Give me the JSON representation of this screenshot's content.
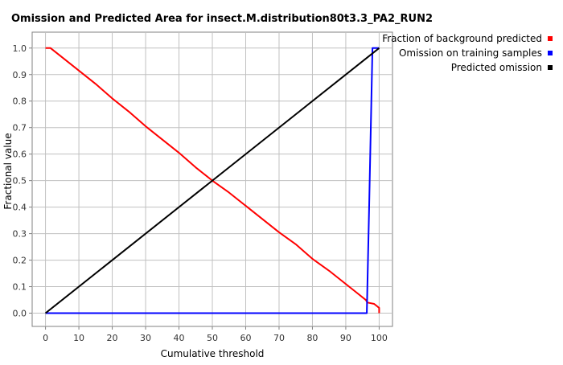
{
  "chart_data": {
    "type": "line",
    "title": "Omission and Predicted Area for insect.M.distribution80t3.3_PA2_RUN2",
    "xlabel": "Cumulative threshold",
    "ylabel": "Fractional value",
    "xlim": [
      -4,
      104
    ],
    "ylim": [
      -0.05,
      1.06
    ],
    "xticks": [
      0,
      10,
      20,
      30,
      40,
      50,
      60,
      70,
      80,
      90,
      100
    ],
    "yticks": [
      0.0,
      0.1,
      0.2,
      0.3,
      0.4,
      0.5,
      0.6,
      0.7,
      0.8,
      0.9,
      1.0
    ],
    "grid": true,
    "legend_position": "top-right, outside plot",
    "series": [
      {
        "name": "Fraction of background predicted",
        "color": "#ff0000",
        "points": [
          [
            0,
            1.0
          ],
          [
            1.5,
            1.0
          ],
          [
            5,
            0.965
          ],
          [
            10,
            0.915
          ],
          [
            15,
            0.865
          ],
          [
            20,
            0.81
          ],
          [
            25,
            0.76
          ],
          [
            30,
            0.705
          ],
          [
            35,
            0.655
          ],
          [
            40,
            0.605
          ],
          [
            45,
            0.55
          ],
          [
            50,
            0.5
          ],
          [
            55,
            0.455
          ],
          [
            60,
            0.405
          ],
          [
            65,
            0.355
          ],
          [
            70,
            0.305
          ],
          [
            75,
            0.26
          ],
          [
            80,
            0.205
          ],
          [
            85,
            0.16
          ],
          [
            90,
            0.11
          ],
          [
            93,
            0.08
          ],
          [
            96,
            0.05
          ],
          [
            96.5,
            0.04
          ],
          [
            98.5,
            0.035
          ],
          [
            100,
            0.02
          ],
          [
            100,
            0.0
          ]
        ]
      },
      {
        "name": "Omission on training samples",
        "color": "#0000ff",
        "points": [
          [
            0,
            0.0
          ],
          [
            96.3,
            0.0
          ],
          [
            97,
            0.4
          ],
          [
            98,
            1.0
          ],
          [
            100,
            1.0
          ]
        ]
      },
      {
        "name": "Predicted omission",
        "color": "#000000",
        "points": [
          [
            0,
            0.0
          ],
          [
            100,
            1.0
          ]
        ]
      }
    ]
  }
}
